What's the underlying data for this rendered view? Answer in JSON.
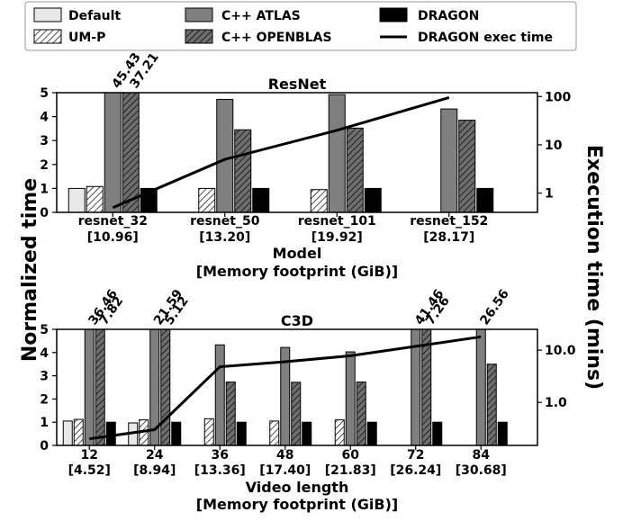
{
  "legend": {
    "placement": "top",
    "entries": [
      {
        "label": "Default",
        "style": "default"
      },
      {
        "label": "UM-P",
        "style": "ump"
      },
      {
        "label": "C++ ATLAS",
        "style": "atlas"
      },
      {
        "label": "C++ OPENBLAS",
        "style": "openblas"
      },
      {
        "label": "DRAGON",
        "style": "dragon"
      },
      {
        "label": "DRAGON exec time",
        "style": "line"
      }
    ]
  },
  "shared_ylabel": "Normalized time",
  "shared_y2label": "Execution time (mins)",
  "colors": {
    "default": "#e8e8e8",
    "ump": "#ffffff",
    "atlas": "#7f7f7f",
    "openblas": "#6e6e6e",
    "dragon": "#000000",
    "line": "#000000"
  },
  "chart_data": [
    {
      "type": "bar",
      "title": "ResNet",
      "xlabel": "Model",
      "xlabel2": "[Memory footprint (GiB)]",
      "ylim": [
        0,
        5
      ],
      "yticks": [
        "0",
        "1",
        "2",
        "3",
        "4",
        "5"
      ],
      "y2_scale": "log",
      "y2lim": [
        0.4,
        120
      ],
      "y2ticks": [
        "1",
        "10",
        "100"
      ],
      "categories": [
        "resnet_32",
        "resnet_50",
        "resnet_101",
        "resnet_152"
      ],
      "category_sublabels": [
        "[10.96]",
        "[13.20]",
        "[19.92]",
        "[28.17]"
      ],
      "series": [
        {
          "name": "Default",
          "values": [
            1.0,
            null,
            null,
            null
          ]
        },
        {
          "name": "UM-P",
          "values": [
            1.08,
            1.0,
            0.95,
            null
          ]
        },
        {
          "name": "C++ ATLAS",
          "values": [
            45.43,
            4.72,
            4.92,
            4.32
          ]
        },
        {
          "name": "C++ OPENBLAS",
          "values": [
            37.21,
            3.45,
            3.52,
            3.85
          ]
        },
        {
          "name": "DRAGON",
          "values": [
            1.0,
            1.0,
            1.0,
            1.0
          ]
        }
      ],
      "bar_annotations": [
        "45.43",
        "37.21"
      ],
      "line": {
        "name": "DRAGON exec time",
        "values": [
          0.5,
          5,
          20,
          95
        ]
      }
    },
    {
      "type": "bar",
      "title": "C3D",
      "xlabel": "Video length",
      "xlabel2": "[Memory footprint (GiB)]",
      "ylim": [
        0,
        5
      ],
      "yticks": [
        "0",
        "1",
        "2",
        "3",
        "4",
        "5"
      ],
      "y2_scale": "log",
      "y2lim": [
        0.15,
        25
      ],
      "y2ticks": [
        "1.0",
        "10.0"
      ],
      "categories": [
        "12",
        "24",
        "36",
        "48",
        "60",
        "72",
        "84"
      ],
      "category_sublabels": [
        "[4.52]",
        "[8.94]",
        "[13.36]",
        "[17.40]",
        "[21.83]",
        "[26.24]",
        "[30.68]"
      ],
      "series": [
        {
          "name": "Default",
          "values": [
            1.05,
            0.97,
            null,
            null,
            null,
            null,
            null
          ]
        },
        {
          "name": "UM-P",
          "values": [
            1.12,
            1.1,
            1.15,
            1.05,
            1.1,
            null,
            null
          ]
        },
        {
          "name": "C++ ATLAS",
          "values": [
            36.46,
            41.46,
            4.33,
            4.22,
            4.03,
            7.82,
            7.26
          ]
        },
        {
          "name": "C++ OPENBLAS",
          "values": [
            21.59,
            26.56,
            2.73,
            2.72,
            2.73,
            5.12,
            3.5
          ]
        },
        {
          "name": "DRAGON",
          "values": [
            1.0,
            1.0,
            1.0,
            1.0,
            1.0,
            1.0,
            1.0
          ]
        }
      ],
      "bar_annotations": [
        "36.46",
        "21.59",
        "41.46",
        "26.56",
        "7.82",
        "5.12",
        "7.26"
      ],
      "line": {
        "name": "DRAGON exec time",
        "values": [
          0.2,
          0.3,
          4.8,
          6,
          7.8,
          11.8,
          18
        ]
      }
    }
  ]
}
